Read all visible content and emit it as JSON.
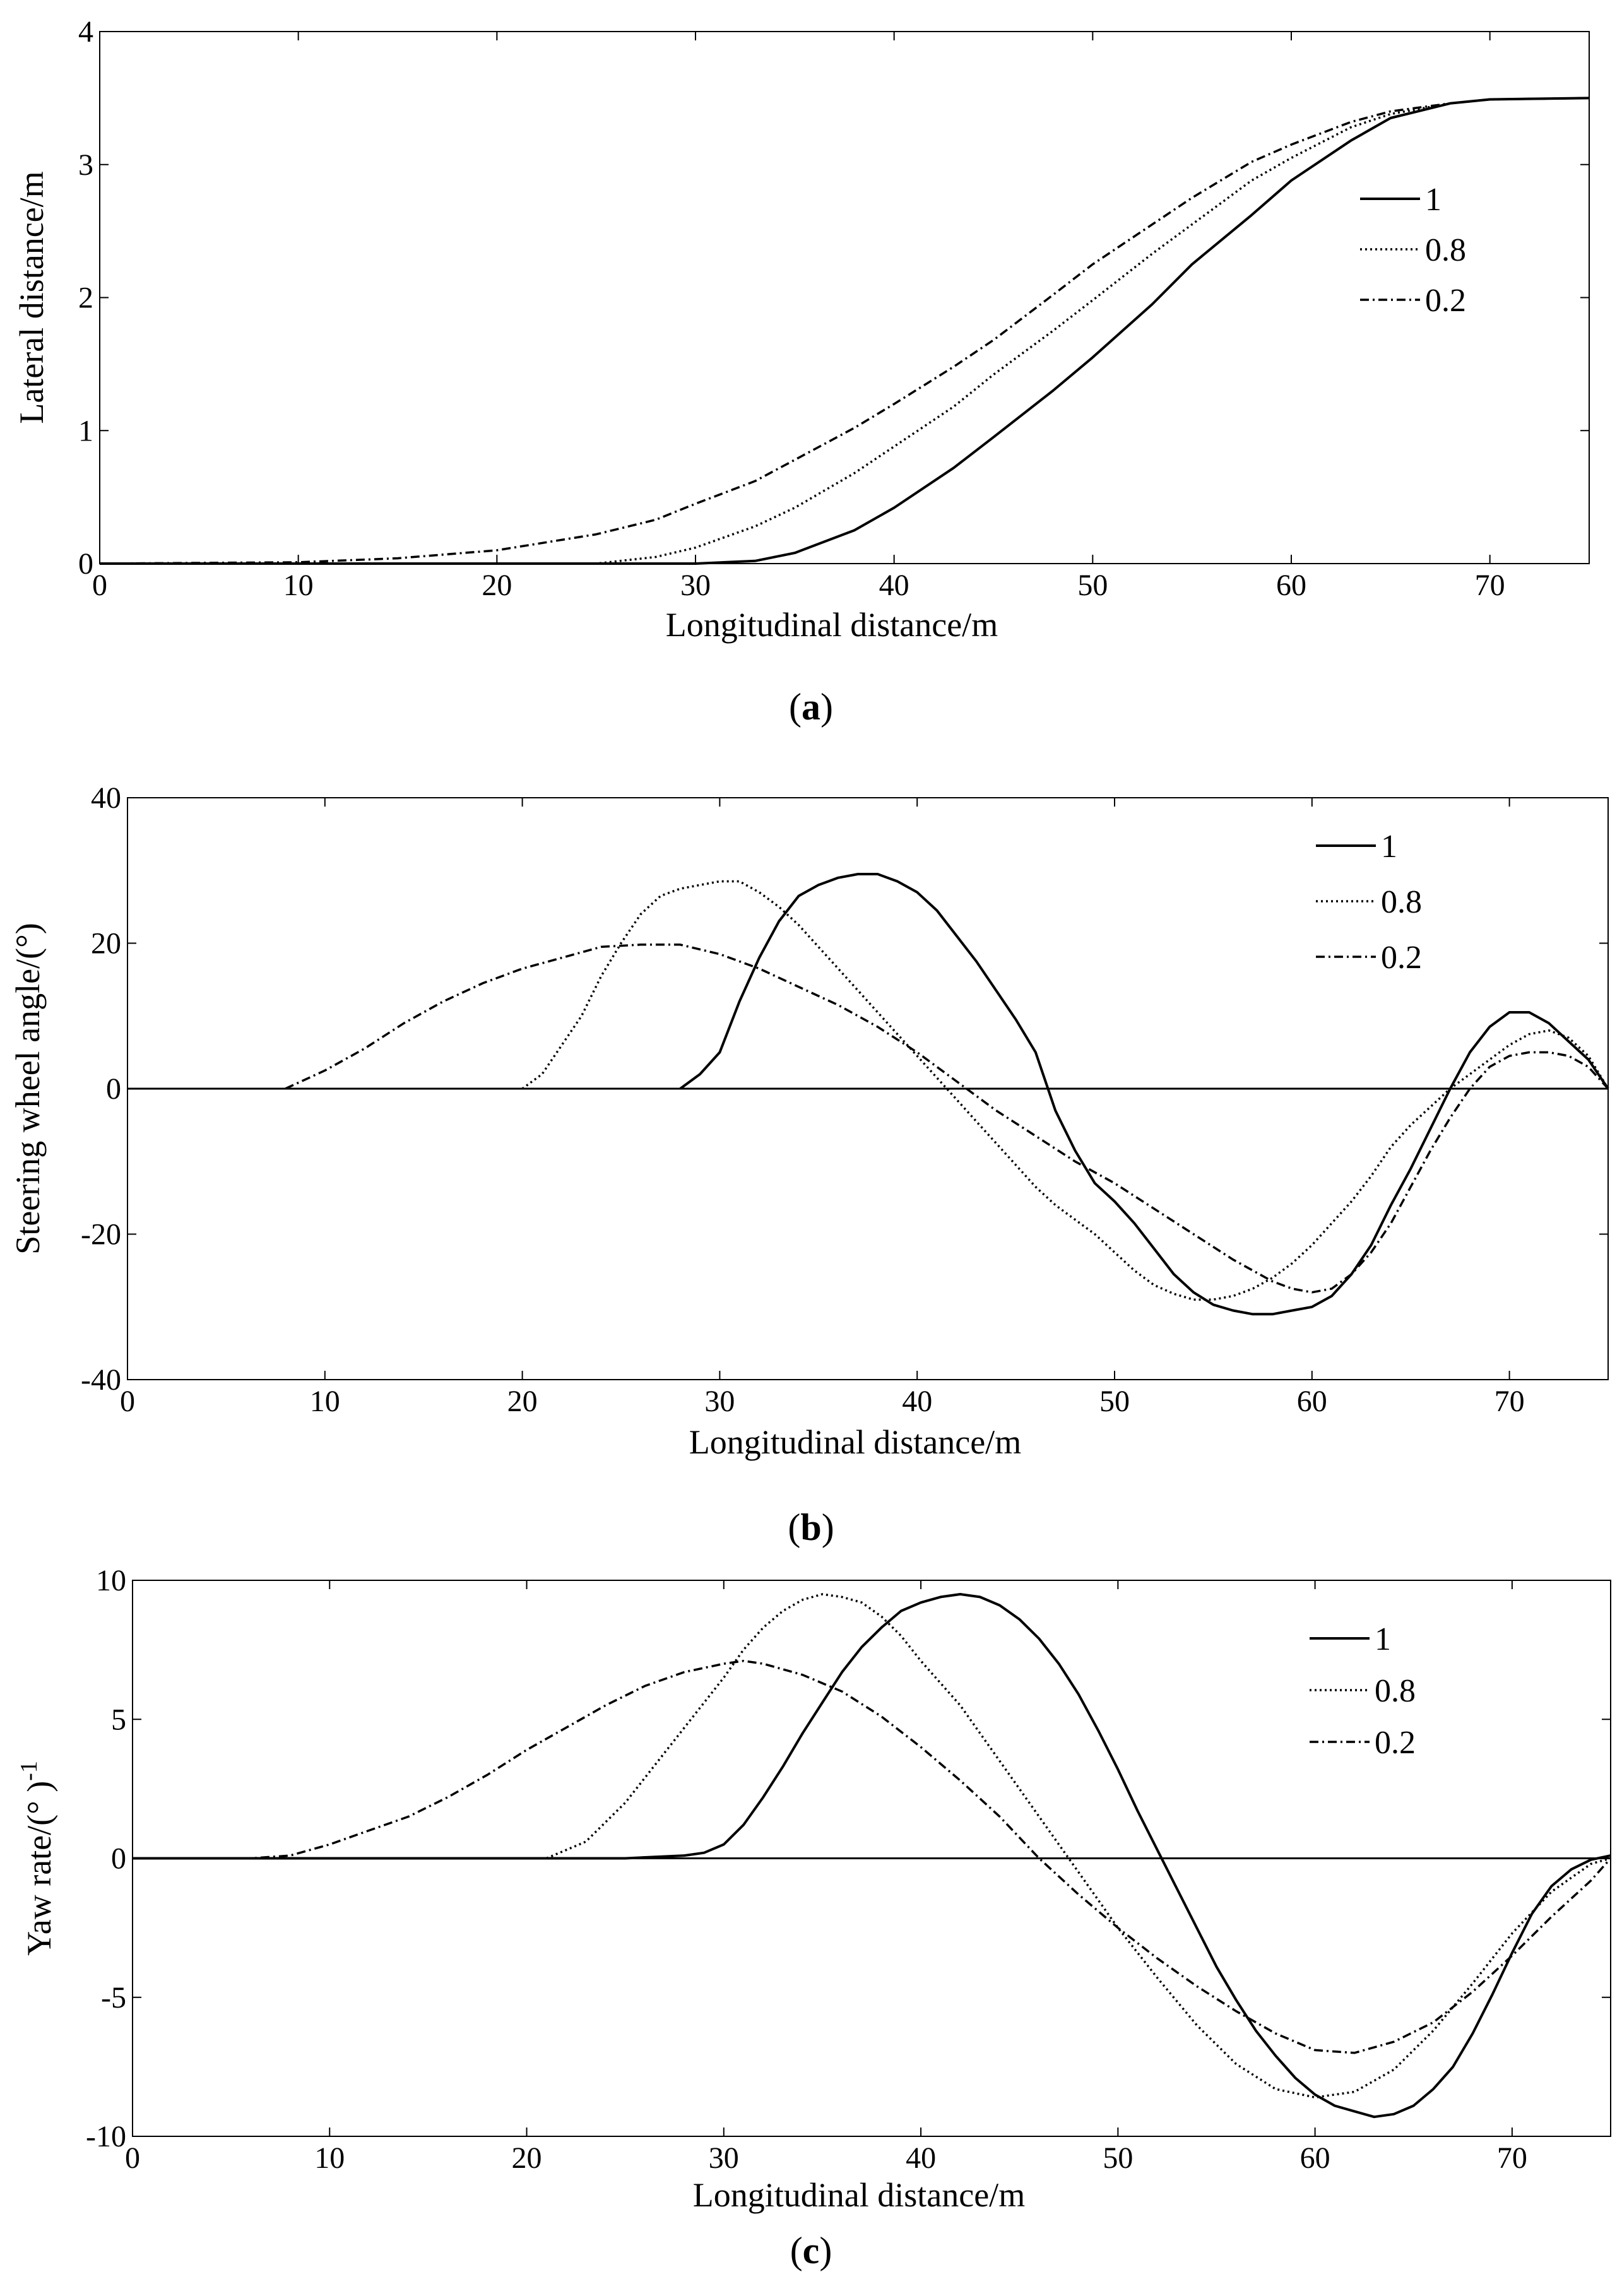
{
  "figure": {
    "panels": [
      {
        "caption_open": "(",
        "caption_letter": "a",
        "caption_close": ")"
      },
      {
        "caption_open": "(",
        "caption_letter": "b",
        "caption_close": ")"
      },
      {
        "caption_open": "(",
        "caption_letter": "c",
        "caption_close": ")"
      }
    ]
  },
  "chart_data": [
    {
      "type": "line",
      "panel": "a",
      "title": "",
      "xlabel": "Longitudinal distance/m",
      "ylabel": "Lateral distance/m",
      "xlim": [
        0,
        75
      ],
      "ylim": [
        0,
        4
      ],
      "xticks": [
        "0",
        "10",
        "20",
        "30",
        "40",
        "50",
        "60",
        "70"
      ],
      "yticks": [
        "0",
        "1",
        "2",
        "3",
        "4"
      ],
      "grid": false,
      "legend_position": "top-right",
      "series": [
        {
          "name": "1",
          "style": "solid",
          "x": [
            0,
            30,
            33,
            35,
            38,
            40,
            43,
            45,
            48,
            50,
            53,
            55,
            58,
            60,
            63,
            65,
            68,
            70,
            75
          ],
          "y": [
            0,
            0,
            0.02,
            0.08,
            0.25,
            0.42,
            0.72,
            0.95,
            1.3,
            1.55,
            1.95,
            2.25,
            2.62,
            2.88,
            3.18,
            3.35,
            3.46,
            3.49,
            3.5
          ]
        },
        {
          "name": "0.8",
          "style": "dotted",
          "x": [
            0,
            25,
            28,
            30,
            33,
            35,
            38,
            40,
            43,
            45,
            48,
            50,
            53,
            55,
            58,
            60,
            63,
            65,
            68,
            70,
            75
          ],
          "y": [
            0,
            0,
            0.05,
            0.12,
            0.28,
            0.42,
            0.68,
            0.88,
            1.18,
            1.42,
            1.75,
            1.98,
            2.33,
            2.55,
            2.88,
            3.05,
            3.28,
            3.38,
            3.46,
            3.49,
            3.5
          ]
        },
        {
          "name": "0.2",
          "style": "dashdot",
          "x": [
            0,
            10,
            15,
            20,
            25,
            28,
            30,
            33,
            35,
            38,
            40,
            43,
            45,
            48,
            50,
            53,
            55,
            58,
            60,
            63,
            65,
            68,
            70,
            75
          ],
          "y": [
            0,
            0.01,
            0.04,
            0.1,
            0.22,
            0.33,
            0.45,
            0.62,
            0.78,
            1.02,
            1.2,
            1.48,
            1.68,
            2.02,
            2.25,
            2.55,
            2.75,
            3.02,
            3.15,
            3.32,
            3.4,
            3.46,
            3.49,
            3.5
          ]
        }
      ]
    },
    {
      "type": "line",
      "panel": "b",
      "title": "",
      "xlabel": "Longitudinal distance/m",
      "ylabel": "Steering wheel angle/(°)",
      "xlim": [
        0,
        75
      ],
      "ylim": [
        -40,
        40
      ],
      "xticks": [
        "0",
        "10",
        "20",
        "30",
        "40",
        "50",
        "60",
        "70"
      ],
      "yticks": [
        "-40",
        "-20",
        "0",
        "20",
        "40"
      ],
      "grid": false,
      "legend_position": "top-right",
      "zero_line": true,
      "series": [
        {
          "name": "1",
          "style": "solid",
          "x": [
            28,
            29,
            30,
            31,
            32,
            33,
            34,
            35,
            36,
            37,
            38,
            39,
            40,
            41,
            42,
            43,
            44,
            45,
            46,
            47,
            48,
            49,
            50,
            51,
            52,
            53,
            54,
            55,
            56,
            57,
            58,
            59,
            60,
            61,
            62,
            63,
            64,
            65,
            66,
            67,
            68,
            69,
            70,
            71,
            72,
            73,
            74,
            75
          ],
          "y": [
            0,
            2,
            5,
            12,
            18,
            23,
            26.5,
            28,
            29,
            29.5,
            29.5,
            28.5,
            27,
            24.5,
            21,
            17.5,
            13.5,
            9.5,
            5,
            -3,
            -8.5,
            -13,
            -15.5,
            -18.5,
            -22,
            -25.5,
            -28,
            -29.7,
            -30.5,
            -31,
            -31,
            -30.5,
            -30,
            -28.5,
            -25.5,
            -21.5,
            -16,
            -11,
            -5.5,
            0,
            5,
            8.5,
            10.5,
            10.5,
            9,
            6.5,
            4,
            0
          ]
        },
        {
          "name": "0.8",
          "style": "dotted",
          "x": [
            20,
            21,
            22,
            23,
            24,
            25,
            26,
            27,
            28,
            29,
            30,
            31,
            32,
            33,
            34,
            35,
            36,
            37,
            38,
            39,
            40,
            41,
            42,
            43,
            44,
            45,
            46,
            47,
            48,
            49,
            50,
            51,
            52,
            53,
            54,
            55,
            56,
            57,
            58,
            59,
            60,
            61,
            62,
            63,
            64,
            65,
            66,
            67,
            68,
            69,
            70,
            71,
            72,
            73,
            74,
            75
          ],
          "y": [
            0,
            2,
            6,
            10,
            15.5,
            20,
            24,
            26.5,
            27.5,
            28,
            28.5,
            28.5,
            27,
            25,
            22.5,
            19.5,
            16.5,
            13.5,
            10.5,
            7.5,
            4.5,
            1.5,
            -1.5,
            -4.5,
            -7.5,
            -10.5,
            -13.5,
            -16,
            -18,
            -20,
            -22.5,
            -25,
            -27,
            -28.2,
            -29,
            -29,
            -28.5,
            -27.5,
            -26,
            -24,
            -21.5,
            -18.5,
            -15.5,
            -12,
            -8,
            -5,
            -2.5,
            0,
            2,
            4,
            6,
            7.5,
            8,
            7,
            4.5,
            0
          ]
        },
        {
          "name": "0.2",
          "style": "dashdot",
          "x": [
            8,
            10,
            12,
            14,
            16,
            18,
            20,
            22,
            24,
            26,
            28,
            30,
            32,
            34,
            36,
            38,
            40,
            42,
            44,
            46,
            48,
            50,
            52,
            54,
            56,
            58,
            59,
            60,
            61,
            62,
            63,
            64,
            65,
            66,
            67,
            68,
            69,
            70,
            71,
            72,
            73,
            74,
            75
          ],
          "y": [
            0,
            2.5,
            5.5,
            9,
            12,
            14.5,
            16.5,
            18,
            19.5,
            19.8,
            19.8,
            18.5,
            16.5,
            14,
            11.5,
            8.5,
            5,
            1,
            -3,
            -6.5,
            -10,
            -13,
            -16.5,
            -20,
            -23.5,
            -26.5,
            -27.5,
            -28,
            -27.5,
            -25.5,
            -22.5,
            -18.5,
            -13.5,
            -8.5,
            -4,
            0,
            3,
            4.5,
            5,
            5,
            4.5,
            3,
            0
          ]
        }
      ]
    },
    {
      "type": "line",
      "panel": "c",
      "title": "",
      "xlabel": "Longitudinal distance/m",
      "ylabel": "Yaw rate/(° )",
      "ylabel_superscript": "-1",
      "xlim": [
        0,
        75
      ],
      "ylim": [
        -10,
        10
      ],
      "xticks": [
        "0",
        "10",
        "20",
        "30",
        "40",
        "50",
        "60",
        "70"
      ],
      "yticks": [
        "-10",
        "-5",
        "0",
        "5",
        "10"
      ],
      "grid": false,
      "legend_position": "top-right",
      "zero_line": true,
      "series": [
        {
          "name": "1",
          "style": "solid",
          "x": [
            0,
            25,
            28,
            29,
            30,
            31,
            32,
            33,
            34,
            35,
            36,
            37,
            38,
            39,
            40,
            41,
            42,
            43,
            44,
            45,
            46,
            47,
            48,
            49,
            50,
            51,
            52,
            53,
            54,
            55,
            56,
            57,
            58,
            59,
            60,
            61,
            62,
            63,
            64,
            65,
            66,
            67,
            68,
            69,
            70,
            71,
            72,
            73,
            74,
            75
          ],
          "y": [
            0,
            0,
            0.1,
            0.2,
            0.5,
            1.2,
            2.2,
            3.3,
            4.5,
            5.6,
            6.7,
            7.6,
            8.3,
            8.9,
            9.2,
            9.4,
            9.5,
            9.4,
            9.1,
            8.6,
            7.9,
            7,
            5.9,
            4.6,
            3.2,
            1.7,
            0.3,
            -1.1,
            -2.5,
            -3.9,
            -5.1,
            -6.2,
            -7.1,
            -7.9,
            -8.5,
            -8.9,
            -9.1,
            -9.3,
            -9.2,
            -8.9,
            -8.3,
            -7.5,
            -6.3,
            -4.9,
            -3.4,
            -2.0,
            -1.0,
            -0.4,
            -0.05,
            0.1
          ]
        },
        {
          "name": "0.8",
          "style": "dotted",
          "x": [
            0,
            21,
            23,
            25,
            27,
            29,
            30,
            31,
            32,
            33,
            34,
            35,
            36,
            37,
            38,
            39,
            40,
            42,
            44,
            46,
            48,
            50,
            52,
            54,
            56,
            58,
            60,
            62,
            64,
            66,
            68,
            70,
            72,
            74,
            75
          ],
          "y": [
            0,
            0,
            0.6,
            2.0,
            3.8,
            5.6,
            6.5,
            7.5,
            8.3,
            8.9,
            9.3,
            9.5,
            9.4,
            9.2,
            8.7,
            8.0,
            7.1,
            5.5,
            3.5,
            1.5,
            -0.5,
            -2.5,
            -4.3,
            -6,
            -7.4,
            -8.3,
            -8.6,
            -8.4,
            -7.6,
            -6.2,
            -4.5,
            -2.7,
            -1.2,
            -0.2,
            0
          ]
        },
        {
          "name": "0.2",
          "style": "dashdot",
          "x": [
            0,
            6,
            8,
            10,
            12,
            14,
            16,
            18,
            20,
            22,
            24,
            26,
            28,
            30,
            31,
            32,
            34,
            36,
            38,
            40,
            42,
            44,
            46,
            48,
            50,
            52,
            54,
            56,
            58,
            60,
            62,
            64,
            66,
            68,
            70,
            72,
            74,
            75
          ],
          "y": [
            0,
            0,
            0.1,
            0.5,
            1.0,
            1.5,
            2.2,
            3.0,
            3.9,
            4.7,
            5.5,
            6.2,
            6.7,
            7.0,
            7.1,
            7.0,
            6.6,
            6.0,
            5.1,
            4.0,
            2.8,
            1.5,
            0,
            -1.3,
            -2.5,
            -3.6,
            -4.6,
            -5.5,
            -6.3,
            -6.9,
            -7.0,
            -6.6,
            -5.9,
            -4.8,
            -3.5,
            -2.1,
            -0.8,
            0
          ]
        }
      ]
    }
  ]
}
